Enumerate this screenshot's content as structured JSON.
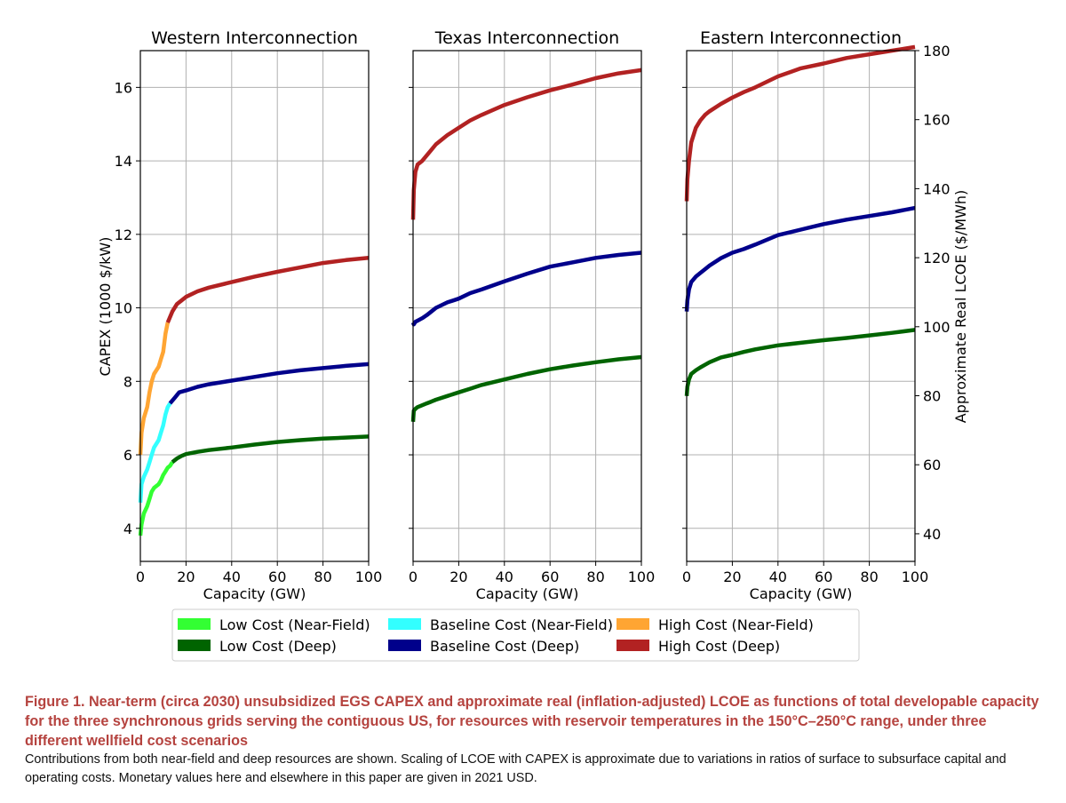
{
  "chart_data": {
    "type": "line",
    "x_label": "Capacity (GW)",
    "y_label_left": "CAPEX (1000 $/kW)",
    "y_label_right": "Approximate Real LCOE ($/MWh)",
    "xlim": [
      0,
      100
    ],
    "ylim_left": [
      3.1,
      17.0
    ],
    "ylim_right": [
      32,
      180
    ],
    "x_ticks": [
      "0",
      "20",
      "40",
      "60",
      "80",
      "100"
    ],
    "y_ticks_left": [
      "4",
      "6",
      "8",
      "10",
      "12",
      "14",
      "16"
    ],
    "y_ticks_right": [
      "40",
      "60",
      "80",
      "100",
      "120",
      "140",
      "160",
      "180"
    ],
    "grid": true,
    "colors": {
      "low_nf": "#33ff33",
      "low_deep": "#006400",
      "base_nf": "#33ffff",
      "base_deep": "#00008b",
      "high_nf": "#ffa533",
      "high_deep": "#b22222"
    },
    "legend": [
      {
        "key": "low_nf",
        "label": "Low Cost (Near-Field)"
      },
      {
        "key": "low_deep",
        "label": "Low Cost (Deep)"
      },
      {
        "key": "base_nf",
        "label": "Baseline Cost (Near-Field)"
      },
      {
        "key": "base_deep",
        "label": "Baseline Cost (Deep)"
      },
      {
        "key": "high_nf",
        "label": "High Cost (Near-Field)"
      },
      {
        "key": "high_deep",
        "label": "High Cost (Deep)"
      }
    ],
    "panels": [
      {
        "title": "Western Interconnection",
        "series": [
          {
            "key": "high_nf",
            "x": [
              0,
              0.5,
              1.5,
              3,
              4,
              5,
              6,
              8,
              9,
              10,
              11,
              12
            ],
            "y": [
              6.0,
              6.6,
              7.0,
              7.3,
              7.7,
              8.0,
              8.2,
              8.4,
              8.6,
              8.8,
              9.3,
              9.6
            ]
          },
          {
            "key": "high_deep",
            "x": [
              12,
              14,
              16,
              18,
              20,
              25,
              30,
              40,
              50,
              60,
              70,
              80,
              90,
              100
            ],
            "y": [
              9.6,
              9.9,
              10.1,
              10.2,
              10.3,
              10.45,
              10.55,
              10.7,
              10.85,
              10.98,
              11.1,
              11.22,
              11.3,
              11.36
            ]
          },
          {
            "key": "base_nf",
            "x": [
              0,
              0.5,
              1.5,
              3,
              4,
              5,
              6,
              8,
              9,
              10,
              11,
              12,
              13
            ],
            "y": [
              4.7,
              5.2,
              5.4,
              5.6,
              5.8,
              6.0,
              6.2,
              6.4,
              6.6,
              6.8,
              7.1,
              7.3,
              7.4
            ]
          },
          {
            "key": "base_deep",
            "x": [
              13,
              15,
              17,
              20,
              25,
              30,
              40,
              50,
              60,
              70,
              80,
              90,
              100
            ],
            "y": [
              7.4,
              7.55,
              7.7,
              7.75,
              7.85,
              7.92,
              8.02,
              8.12,
              8.22,
              8.3,
              8.36,
              8.42,
              8.47
            ]
          },
          {
            "key": "low_nf",
            "x": [
              0,
              0.5,
              1.5,
              3,
              4,
              5,
              6,
              8,
              9,
              10,
              11,
              12,
              13,
              14
            ],
            "y": [
              3.8,
              4.1,
              4.4,
              4.6,
              4.8,
              5.0,
              5.1,
              5.2,
              5.3,
              5.45,
              5.55,
              5.65,
              5.7,
              5.8
            ]
          },
          {
            "key": "low_deep",
            "x": [
              14,
              16,
              18,
              20,
              25,
              30,
              40,
              50,
              60,
              70,
              80,
              90,
              100
            ],
            "y": [
              5.8,
              5.9,
              5.97,
              6.02,
              6.08,
              6.13,
              6.2,
              6.28,
              6.35,
              6.4,
              6.44,
              6.47,
              6.5
            ]
          }
        ]
      },
      {
        "title": "Texas Interconnection",
        "series": [
          {
            "key": "high_deep",
            "x": [
              0,
              0.3,
              1,
              2,
              4,
              6,
              8,
              10,
              15,
              20,
              25,
              30,
              40,
              50,
              60,
              70,
              80,
              90,
              100
            ],
            "y": [
              12.4,
              13.2,
              13.7,
              13.9,
              14.0,
              14.15,
              14.3,
              14.45,
              14.7,
              14.9,
              15.1,
              15.25,
              15.52,
              15.73,
              15.92,
              16.08,
              16.25,
              16.38,
              16.47
            ]
          },
          {
            "key": "base_deep",
            "x": [
              0,
              0.3,
              1,
              2,
              4,
              6,
              8,
              10,
              15,
              20,
              25,
              30,
              40,
              50,
              60,
              70,
              80,
              90,
              100
            ],
            "y": [
              9.6,
              9.55,
              9.62,
              9.65,
              9.72,
              9.8,
              9.9,
              10.0,
              10.15,
              10.25,
              10.4,
              10.5,
              10.72,
              10.93,
              11.12,
              11.24,
              11.36,
              11.44,
              11.5
            ]
          },
          {
            "key": "low_deep",
            "x": [
              0,
              0.3,
              1,
              2,
              4,
              6,
              8,
              10,
              15,
              20,
              25,
              30,
              40,
              50,
              60,
              70,
              80,
              90,
              100
            ],
            "y": [
              6.9,
              7.2,
              7.25,
              7.3,
              7.35,
              7.4,
              7.45,
              7.5,
              7.6,
              7.7,
              7.8,
              7.9,
              8.05,
              8.2,
              8.33,
              8.43,
              8.52,
              8.6,
              8.66
            ]
          }
        ]
      },
      {
        "title": "Eastern Interconnection",
        "series": [
          {
            "key": "high_deep",
            "x": [
              0,
              0.3,
              1,
              2,
              4,
              6,
              8,
              10,
              15,
              20,
              25,
              30,
              40,
              50,
              60,
              70,
              80,
              90,
              100
            ],
            "y": [
              12.9,
              13.5,
              14.0,
              14.5,
              14.9,
              15.1,
              15.25,
              15.35,
              15.55,
              15.72,
              15.87,
              16.0,
              16.3,
              16.52,
              16.65,
              16.8,
              16.9,
              17.0,
              17.1
            ]
          },
          {
            "key": "base_deep",
            "x": [
              0,
              0.3,
              1,
              2,
              4,
              6,
              8,
              10,
              15,
              20,
              25,
              30,
              40,
              50,
              60,
              70,
              80,
              90,
              100
            ],
            "y": [
              9.9,
              10.2,
              10.5,
              10.7,
              10.85,
              10.95,
              11.05,
              11.15,
              11.35,
              11.5,
              11.6,
              11.72,
              11.98,
              12.13,
              12.28,
              12.4,
              12.5,
              12.6,
              12.72
            ]
          },
          {
            "key": "low_deep",
            "x": [
              0,
              0.3,
              1,
              2,
              4,
              6,
              8,
              10,
              15,
              20,
              25,
              30,
              40,
              50,
              60,
              70,
              80,
              90,
              100
            ],
            "y": [
              7.6,
              7.85,
              8.05,
              8.2,
              8.3,
              8.38,
              8.45,
              8.52,
              8.65,
              8.72,
              8.8,
              8.87,
              8.98,
              9.05,
              9.12,
              9.18,
              9.25,
              9.32,
              9.4
            ]
          }
        ]
      }
    ]
  },
  "caption": {
    "title": "Figure 1.  Near-term (circa 2030) unsubsidized EGS CAPEX and approximate real (inflation-adjusted) LCOE as functions of total developable capacity for the three synchronous grids serving the contiguous US, for resources with reservoir temperatures in the 150°C–250°C range, under three different wellfield cost scenarios",
    "body": "Contributions from both near-field and deep resources are shown. Scaling of LCOE with CAPEX is approximate due to variations in ratios of surface to subsurface capital and operating costs. Monetary values here and elsewhere in this paper are given in 2021 USD."
  }
}
